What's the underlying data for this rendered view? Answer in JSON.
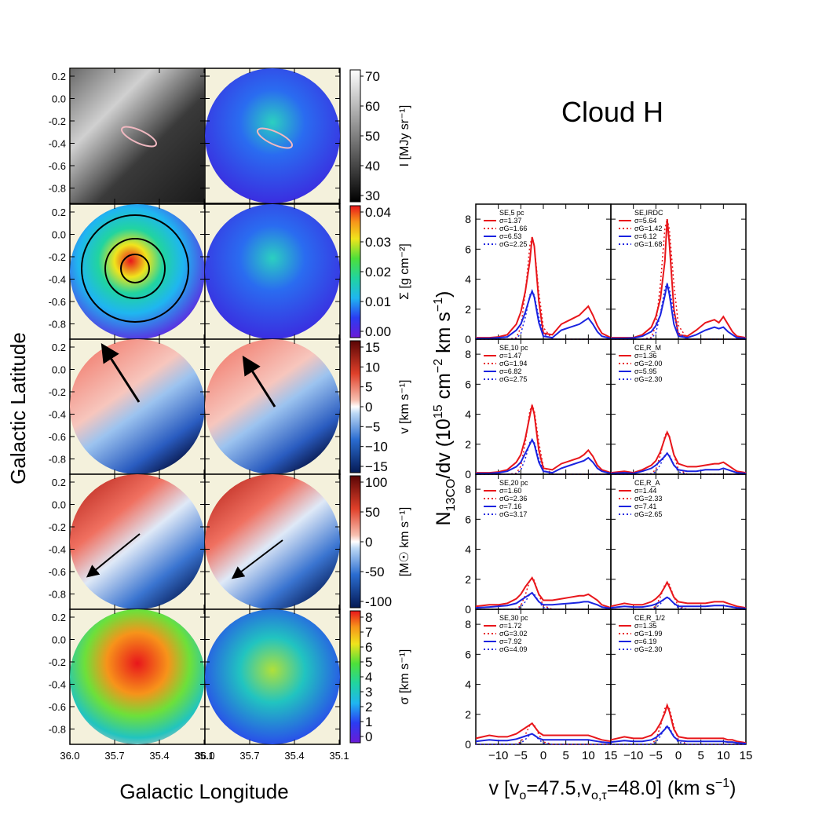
{
  "title": "Cloud H",
  "left_panel": {
    "xlabel": "Galactic Longitude",
    "ylabel": "Galactic Latitude",
    "x_ticks_left": [
      "36.0",
      "35.7",
      "35.4",
      "35.1"
    ],
    "x_ticks_right": [
      "36.0",
      "35.7",
      "35.4",
      "35.1"
    ],
    "y_ticks": [
      "0.2",
      "0.0",
      "-0.2",
      "-0.4",
      "-0.6",
      "-0.8"
    ],
    "colorbars": [
      {
        "label": "I [MJy sr⁻¹]",
        "ticks": [
          "70",
          "60",
          "50",
          "40",
          "30"
        ]
      },
      {
        "label": "Σ [g cm⁻²]",
        "ticks": [
          "0.04",
          "0.03",
          "0.02",
          "0.01",
          "0.00"
        ]
      },
      {
        "label": "v [km s⁻¹]",
        "ticks": [
          "15",
          "10",
          "5",
          "0",
          "−5",
          "−10",
          "−15"
        ]
      },
      {
        "label": "[M☉ km s⁻¹]",
        "ticks": [
          "100",
          "50",
          "0",
          "-50",
          "-100"
        ]
      },
      {
        "label": "σ [km s⁻¹]",
        "ticks": [
          "8",
          "7",
          "6",
          "5",
          "4",
          "3",
          "2",
          "1",
          "0"
        ]
      }
    ]
  },
  "chart_data": {
    "type": "line",
    "title": "Cloud H",
    "xlabel": "v [vₒ=47.5,vₒ,τ=48.0] (km s⁻¹)",
    "ylabel": "N13CO/dv (10¹⁵ cm⁻² km s⁻¹)",
    "xlim": [
      -15,
      15
    ],
    "ylim": [
      0,
      9
    ],
    "x_ticks": [
      "−10",
      "−5",
      "0",
      "5",
      "10",
      "15"
    ],
    "y_ticks": [
      "0",
      "2",
      "4",
      "6",
      "8"
    ],
    "x": [
      -15,
      -12,
      -10,
      -8,
      -6,
      -5,
      -4,
      -3,
      -2.5,
      -2,
      -1,
      0,
      2,
      4,
      6,
      8,
      9,
      10,
      11,
      12,
      13,
      15
    ],
    "panels": [
      {
        "tag": "SE,5 pc",
        "legend": [
          "σ=1.37",
          "σG=1.66",
          "σ=6.53",
          "σG=2.25"
        ],
        "values": {
          "red": [
            0.1,
            0.1,
            0.15,
            0.3,
            1.0,
            1.8,
            3.2,
            5.2,
            6.8,
            6.2,
            2.5,
            0.4,
            0.3,
            1.0,
            1.3,
            1.6,
            1.9,
            2.2,
            1.6,
            0.9,
            0.4,
            0.1
          ],
          "blue": [
            0.05,
            0.05,
            0.1,
            0.15,
            0.6,
            1.0,
            1.8,
            2.8,
            3.2,
            2.8,
            1.1,
            0.2,
            0.1,
            0.6,
            0.8,
            1.0,
            1.2,
            1.4,
            1.0,
            0.5,
            0.2,
            0.05
          ]
        }
      },
      {
        "tag": "SE,IRDC",
        "legend": [
          "σ=5.64",
          "σG=1.42",
          "σ=6.12",
          "σG=1.68"
        ],
        "values": {
          "red": [
            0.1,
            0.1,
            0.1,
            0.3,
            0.8,
            1.5,
            2.7,
            5.2,
            8.0,
            6.4,
            2.0,
            0.3,
            0.2,
            0.6,
            1.1,
            1.3,
            1.1,
            1.5,
            1.0,
            0.5,
            0.2,
            0.1
          ],
          "blue": [
            0.05,
            0.05,
            0.08,
            0.2,
            0.5,
            0.9,
            1.6,
            2.9,
            3.7,
            3.0,
            1.0,
            0.2,
            0.1,
            0.3,
            0.6,
            0.8,
            0.7,
            0.8,
            0.5,
            0.3,
            0.1,
            0.05
          ]
        }
      },
      {
        "tag": "SE,10 pc",
        "legend": [
          "σ=1.47",
          "σG=1.94",
          "σ=6.82",
          "σG=2.75"
        ],
        "values": {
          "red": [
            0.1,
            0.1,
            0.15,
            0.3,
            0.8,
            1.3,
            2.4,
            3.9,
            4.6,
            4.0,
            1.6,
            0.4,
            0.3,
            0.7,
            0.9,
            1.1,
            1.3,
            1.6,
            1.2,
            0.6,
            0.3,
            0.1
          ],
          "blue": [
            0.05,
            0.05,
            0.1,
            0.2,
            0.5,
            0.8,
            1.4,
            2.0,
            2.3,
            2.0,
            0.8,
            0.2,
            0.1,
            0.4,
            0.6,
            0.8,
            0.9,
            1.1,
            0.8,
            0.4,
            0.2,
            0.05
          ]
        }
      },
      {
        "tag": "CE,R_M",
        "legend": [
          "σ=1.36",
          "σG=2.00",
          "σ=5.95",
          "σG=2.30"
        ],
        "values": {
          "red": [
            0.1,
            0.2,
            0.1,
            0.3,
            0.6,
            0.9,
            1.5,
            2.4,
            2.8,
            2.5,
            1.3,
            0.7,
            0.5,
            0.5,
            0.6,
            0.7,
            0.7,
            0.8,
            0.6,
            0.4,
            0.2,
            0.1
          ],
          "blue": [
            0.05,
            0.1,
            0.05,
            0.2,
            0.4,
            0.6,
            0.9,
            1.2,
            1.4,
            1.2,
            0.6,
            0.3,
            0.2,
            0.2,
            0.3,
            0.3,
            0.3,
            0.4,
            0.3,
            0.2,
            0.1,
            0.05
          ]
        }
      },
      {
        "tag": "SE,20 pc",
        "legend": [
          "σ=1.60",
          "σG=2.36",
          "σ=7.16",
          "σG=3.17"
        ],
        "values": {
          "red": [
            0.2,
            0.3,
            0.3,
            0.4,
            0.7,
            1.0,
            1.5,
            1.9,
            2.1,
            1.8,
            1.0,
            0.6,
            0.6,
            0.7,
            0.8,
            0.9,
            0.9,
            1.0,
            0.8,
            0.6,
            0.3,
            0.1
          ],
          "blue": [
            0.1,
            0.15,
            0.2,
            0.25,
            0.4,
            0.6,
            0.8,
            1.0,
            1.1,
            0.9,
            0.5,
            0.3,
            0.3,
            0.35,
            0.4,
            0.45,
            0.5,
            0.5,
            0.4,
            0.3,
            0.15,
            0.05
          ]
        }
      },
      {
        "tag": "CE,R_A",
        "legend": [
          "σ=1.44",
          "σG=2.33",
          "σ=7.41",
          "σG=2.65"
        ],
        "values": {
          "red": [
            0.2,
            0.4,
            0.3,
            0.3,
            0.5,
            0.7,
            1.0,
            1.5,
            1.8,
            1.5,
            0.8,
            0.5,
            0.4,
            0.4,
            0.4,
            0.5,
            0.5,
            0.5,
            0.4,
            0.3,
            0.2,
            0.1
          ],
          "blue": [
            0.1,
            0.2,
            0.15,
            0.15,
            0.25,
            0.35,
            0.5,
            0.7,
            0.8,
            0.7,
            0.4,
            0.2,
            0.2,
            0.2,
            0.2,
            0.25,
            0.25,
            0.25,
            0.2,
            0.15,
            0.1,
            0.05
          ]
        }
      },
      {
        "tag": "SE,30 pc",
        "legend": [
          "σ=1.72",
          "σG=3.02",
          "σ=7.92",
          "σG=4.09"
        ],
        "values": {
          "red": [
            0.4,
            0.6,
            0.5,
            0.5,
            0.7,
            0.9,
            1.1,
            1.3,
            1.4,
            1.2,
            0.8,
            0.6,
            0.6,
            0.6,
            0.6,
            0.6,
            0.6,
            0.6,
            0.5,
            0.4,
            0.3,
            0.2
          ],
          "blue": [
            0.2,
            0.3,
            0.25,
            0.25,
            0.35,
            0.45,
            0.55,
            0.65,
            0.7,
            0.6,
            0.4,
            0.3,
            0.3,
            0.3,
            0.3,
            0.3,
            0.3,
            0.3,
            0.25,
            0.2,
            0.15,
            0.1
          ]
        }
      },
      {
        "tag": "CE,R_1/2",
        "legend": [
          "σ=1.35",
          "σG=1.99",
          "σ=6.19",
          "σG=2.30"
        ],
        "values": {
          "red": [
            0.3,
            0.5,
            0.4,
            0.4,
            0.6,
            0.9,
            1.4,
            2.1,
            2.6,
            2.2,
            1.0,
            0.5,
            0.4,
            0.4,
            0.4,
            0.4,
            0.4,
            0.4,
            0.3,
            0.3,
            0.2,
            0.1
          ],
          "blue": [
            0.15,
            0.25,
            0.2,
            0.2,
            0.3,
            0.45,
            0.7,
            1.0,
            1.2,
            1.0,
            0.5,
            0.25,
            0.2,
            0.2,
            0.2,
            0.2,
            0.2,
            0.2,
            0.15,
            0.15,
            0.1,
            0.05
          ]
        }
      }
    ],
    "colors": {
      "red": "#e8161b",
      "blue": "#1a23e0"
    }
  }
}
